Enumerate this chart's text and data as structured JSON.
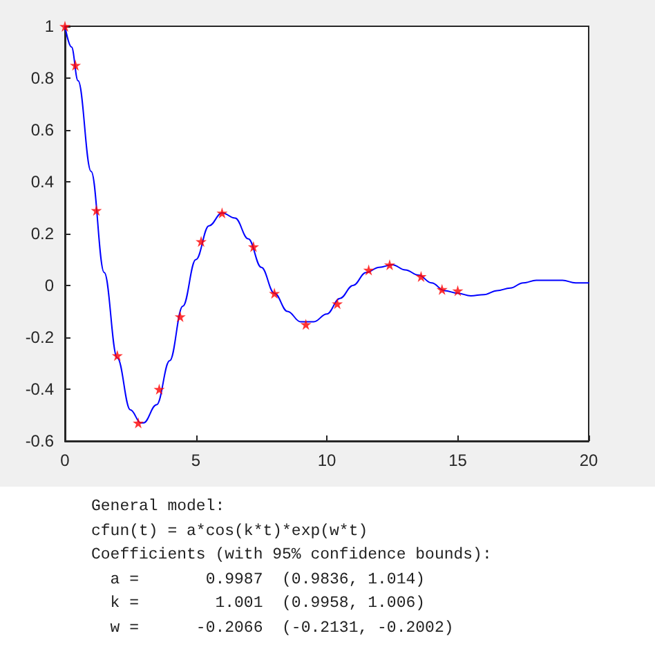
{
  "chart_data": {
    "type": "line",
    "xlim": [
      0,
      20
    ],
    "xticks": [
      0,
      5,
      10,
      15,
      20
    ],
    "ylim": [
      -0.6,
      1
    ],
    "yticks": [
      -0.6,
      -0.4,
      -0.2,
      0,
      0.2,
      0.4,
      0.6,
      0.8,
      1
    ],
    "grid": false,
    "series": [
      {
        "type": "scatter",
        "color": "#ff0000",
        "marker": "star",
        "x": [
          0,
          0.4,
          1.2,
          2.0,
          2.8,
          3.6,
          4.4,
          5.2,
          6.0,
          7.2,
          8.0,
          9.2,
          10.4,
          11.6,
          12.4,
          13.6,
          14.4,
          15.0
        ],
        "values": [
          1,
          0.85,
          0.29,
          -0.27,
          -0.53,
          -0.4,
          -0.12,
          0.17,
          0.28,
          0.15,
          -0.03,
          -0.15,
          -0.07,
          0.06,
          0.08,
          0.035,
          -0.015,
          -0.02
        ]
      },
      {
        "type": "line",
        "color": "#0000ff",
        "marker": "none",
        "line_style": "solid",
        "x": [
          0,
          0.25,
          0.5,
          1,
          1.5,
          2,
          2.5,
          2.9,
          3,
          3.5,
          4,
          4.5,
          5,
          5.5,
          6,
          6.5,
          7,
          7.5,
          8,
          8.5,
          9,
          9.5,
          10,
          10.5,
          11,
          11.5,
          12,
          12.5,
          13,
          13.5,
          14,
          14.5,
          15,
          15.5,
          16,
          16.5,
          17,
          17.5,
          18,
          18.5,
          19,
          19.5,
          20
        ],
        "values": [
          1,
          0.92,
          0.79,
          0.44,
          0.05,
          -0.28,
          -0.48,
          -0.53,
          -0.53,
          -0.46,
          -0.29,
          -0.08,
          0.1,
          0.23,
          0.28,
          0.26,
          0.18,
          0.07,
          -0.03,
          -0.1,
          -0.14,
          -0.14,
          -0.11,
          -0.05,
          0.0,
          0.05,
          0.07,
          0.08,
          0.06,
          0.04,
          0.01,
          -0.02,
          -0.03,
          -0.04,
          -0.035,
          -0.02,
          -0.01,
          0.01,
          0.02,
          0.02,
          0.02,
          0.01,
          0.01
        ]
      }
    ],
    "annotations": [
      "General model:",
      "cfun(t) = a*cos(k*t)*exp(w*t)",
      "Coefficients (with 95% confidence bounds):",
      "  a =       0.9987  (0.9836, 1.014)",
      "  k =        1.001  (0.9958, 1.006)",
      "  w =      -0.2066  (-0.2131, -0.2002)"
    ]
  }
}
